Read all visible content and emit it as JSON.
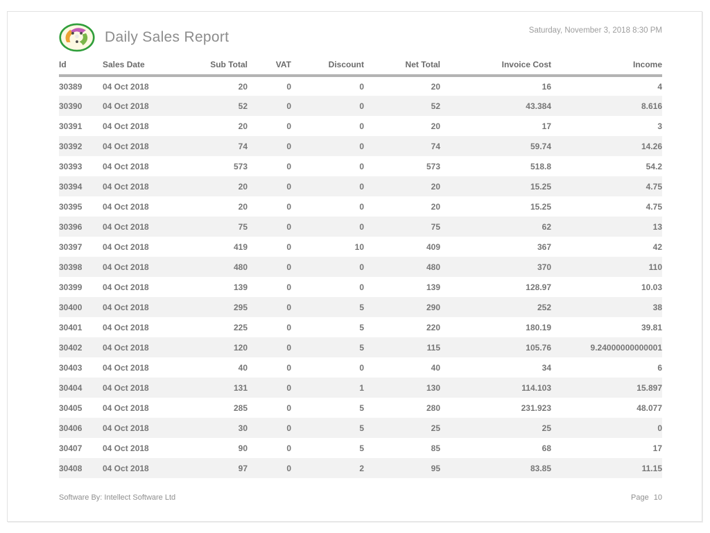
{
  "header": {
    "title": "Daily Sales Report",
    "datetime": "Saturday, November 3, 2018 8:30 PM"
  },
  "logo": {
    "name": "company-logo",
    "ring_color": "#2f9e3a",
    "fill_color": "#fdf9e3",
    "swirl_colors": [
      "#c25cb8",
      "#eda234",
      "#7ab648"
    ]
  },
  "table": {
    "columns": [
      "Id",
      "Sales Date",
      "Sub Total",
      "VAT",
      "Discount",
      "Net Total",
      "Invoice Cost",
      "Income"
    ],
    "rows": [
      [
        "30389",
        "04 Oct 2018",
        "20",
        "0",
        "0",
        "20",
        "16",
        "4"
      ],
      [
        "30390",
        "04 Oct 2018",
        "52",
        "0",
        "0",
        "52",
        "43.384",
        "8.616"
      ],
      [
        "30391",
        "04 Oct 2018",
        "20",
        "0",
        "0",
        "20",
        "17",
        "3"
      ],
      [
        "30392",
        "04 Oct 2018",
        "74",
        "0",
        "0",
        "74",
        "59.74",
        "14.26"
      ],
      [
        "30393",
        "04 Oct 2018",
        "573",
        "0",
        "0",
        "573",
        "518.8",
        "54.2"
      ],
      [
        "30394",
        "04 Oct 2018",
        "20",
        "0",
        "0",
        "20",
        "15.25",
        "4.75"
      ],
      [
        "30395",
        "04 Oct 2018",
        "20",
        "0",
        "0",
        "20",
        "15.25",
        "4.75"
      ],
      [
        "30396",
        "04 Oct 2018",
        "75",
        "0",
        "0",
        "75",
        "62",
        "13"
      ],
      [
        "30397",
        "04 Oct 2018",
        "419",
        "0",
        "10",
        "409",
        "367",
        "42"
      ],
      [
        "30398",
        "04 Oct 2018",
        "480",
        "0",
        "0",
        "480",
        "370",
        "110"
      ],
      [
        "30399",
        "04 Oct 2018",
        "139",
        "0",
        "0",
        "139",
        "128.97",
        "10.03"
      ],
      [
        "30400",
        "04 Oct 2018",
        "295",
        "0",
        "5",
        "290",
        "252",
        "38"
      ],
      [
        "30401",
        "04 Oct 2018",
        "225",
        "0",
        "5",
        "220",
        "180.19",
        "39.81"
      ],
      [
        "30402",
        "04 Oct 2018",
        "120",
        "0",
        "5",
        "115",
        "105.76",
        "9.24000000000001"
      ],
      [
        "30403",
        "04 Oct 2018",
        "40",
        "0",
        "0",
        "40",
        "34",
        "6"
      ],
      [
        "30404",
        "04 Oct 2018",
        "131",
        "0",
        "1",
        "130",
        "114.103",
        "15.897"
      ],
      [
        "30405",
        "04 Oct 2018",
        "285",
        "0",
        "5",
        "280",
        "231.923",
        "48.077"
      ],
      [
        "30406",
        "04 Oct 2018",
        "30",
        "0",
        "5",
        "25",
        "25",
        "0"
      ],
      [
        "30407",
        "04 Oct 2018",
        "90",
        "0",
        "5",
        "85",
        "68",
        "17"
      ],
      [
        "30408",
        "04 Oct 2018",
        "97",
        "0",
        "2",
        "95",
        "83.85",
        "11.15"
      ]
    ]
  },
  "footer": {
    "credit": "Software By: Intellect Software Ltd",
    "page_label": "Page",
    "page_number": "10"
  },
  "colors": {
    "title_text": "#8c8c8c",
    "table_text": "#767676",
    "header_rule": "#b3b3b3",
    "row_stripe": "#f2f2f2",
    "footer_text": "#8f8f8f",
    "page_border": "#e2e2e2"
  }
}
